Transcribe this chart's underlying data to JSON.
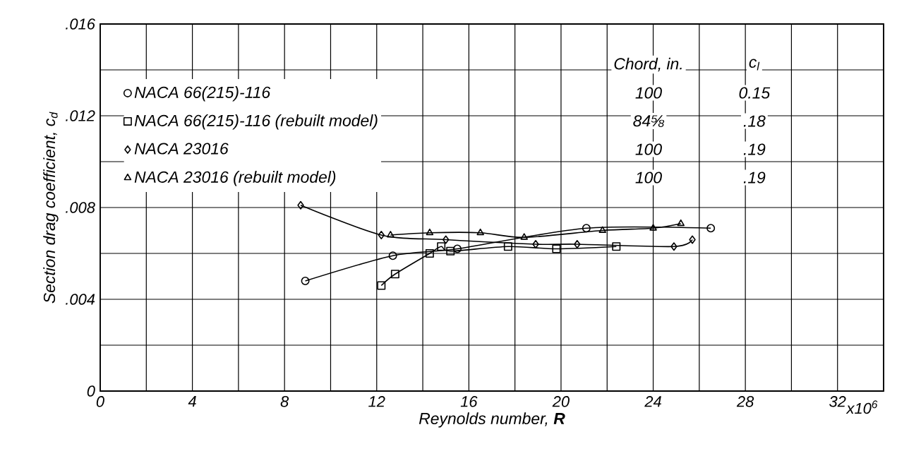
{
  "chart_data": {
    "type": "line",
    "xlabel": "Reynolds number, **R**",
    "ylabel": "Section drag coefficient, c$_{d}$",
    "xlim": [
      0,
      34
    ],
    "ylim": [
      0,
      0.016
    ],
    "xticks": [
      0,
      {
        "value": 2,
        "label": null
      },
      4,
      {
        "value": 6,
        "label": null
      },
      8,
      {
        "value": 10,
        "label": null
      },
      12,
      {
        "value": 14,
        "label": null
      },
      16,
      {
        "value": 18,
        "label": null
      },
      20,
      {
        "value": 22,
        "label": null
      },
      24,
      {
        "value": 26,
        "label": null
      },
      28,
      {
        "value": 30,
        "label": null
      },
      32,
      {
        "value": 34,
        "label": null
      }
    ],
    "yticks": [
      0,
      {
        "value": 0.002,
        "label": null
      },
      {
        "value": 0.004,
        "label": ".004"
      },
      {
        "value": 0.006,
        "label": null
      },
      {
        "value": 0.008,
        "label": ".008"
      },
      {
        "value": 0.01,
        "label": null
      },
      {
        "value": 0.012,
        "label": ".012"
      },
      {
        "value": 0.014,
        "label": null
      },
      {
        "value": 0.016,
        "label": ".016"
      }
    ],
    "grid": true,
    "legend": "top left",
    "series": [
      {
        "name": "NACA 66(215)-116",
        "color": "#000000",
        "marker": "circle",
        "x": [
          8.9,
          12.7,
          15.5,
          21.1,
          26.5
        ],
        "values": [
          0.0048,
          0.0059,
          0.0062,
          0.0071,
          0.0071
        ]
      },
      {
        "name": "NACA 66(215)-116 (rebuilt model)",
        "color": "#000000",
        "marker": "square",
        "x": [
          12.2,
          12.8,
          14.3,
          14.8,
          15.2,
          17.7,
          19.8,
          22.4
        ],
        "values": [
          0.0046,
          0.0051,
          0.006,
          0.0063,
          0.0061,
          0.0063,
          0.0062,
          0.0063
        ]
      },
      {
        "name": "NACA 23016",
        "color": "#000000",
        "marker": "diamond",
        "x": [
          8.7,
          12.2,
          15.0,
          18.9,
          20.7,
          24.9,
          25.7
        ],
        "values": [
          0.0081,
          0.0068,
          0.0066,
          0.0064,
          0.0064,
          0.0063,
          0.0066
        ]
      },
      {
        "name": "NACA 23016 (rebuilt model)",
        "color": "#000000",
        "marker": "triangle",
        "x": [
          12.6,
          14.3,
          16.5,
          18.4,
          21.8,
          24.0,
          25.2
        ],
        "values": [
          0.0068,
          0.0069,
          0.0069,
          0.0067,
          0.007,
          0.0071,
          0.0073
        ]
      }
    ],
    "annotations": [
      "x10$^{6}$",
      "Chord, in.",
      "c$_{l}$",
      "100",
      "0.15",
      "84⅝",
      ".18",
      "100",
      ".19",
      "100",
      ".19"
    ]
  }
}
